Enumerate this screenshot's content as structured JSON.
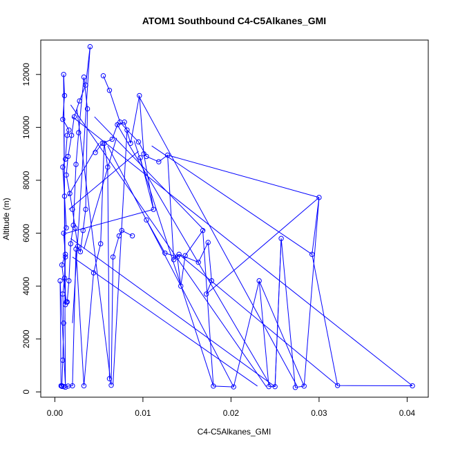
{
  "chart_data": {
    "type": "scatter",
    "title": "ATOM1 Southbound C4-C5Alkanes_GMI",
    "xlabel": "C4-C5Alkanes_GMI",
    "ylabel": "Altitude (m)",
    "xlim": [
      -0.0016,
      0.0424
    ],
    "ylim": [
      -200,
      13300
    ],
    "x_ticks": [
      0.0,
      0.01,
      0.02,
      0.03,
      0.04
    ],
    "x_tick_labels": [
      "0.00",
      "0.01",
      "0.02",
      "0.03",
      "0.04"
    ],
    "y_ticks": [
      0,
      2000,
      4000,
      6000,
      8000,
      10000,
      12000
    ],
    "y_tick_labels": [
      "0",
      "2000",
      "4000",
      "6000",
      "8000",
      "10000",
      "12000"
    ],
    "grid": false,
    "legend": "none",
    "series_color": "#0000ff",
    "series": [
      {
        "x": [
          0.0008,
          0.0009,
          0.001,
          0.0009,
          0.0011,
          0.0012,
          0.001,
          0.0013,
          0.0011,
          0.0009,
          0.0012,
          0.0014,
          0.0016,
          0.0009,
          0.0011,
          0.001,
          0.0012,
          0.0013,
          0.0008,
          0.0012
        ],
        "y": [
          230,
          1200,
          2600,
          3700,
          4300,
          5100,
          6000,
          6200,
          7400,
          8500,
          8800,
          9700,
          9900,
          10300,
          11200,
          12000,
          3300,
          3400,
          4800,
          5200
        ]
      },
      {
        "x": [
          0.004,
          0.0035,
          0.0028,
          0.0022,
          0.0019,
          0.0015,
          0.0013,
          0.0017,
          0.002,
          0.0023,
          0.0026,
          0.0029,
          0.0032,
          0.0035,
          0.0037,
          0.0033,
          0.0027,
          0.0024,
          0.0021,
          0.0018,
          0.0016,
          0.0014
        ],
        "y": [
          13050,
          11600,
          11000,
          10400,
          9700,
          8900,
          8200,
          7500,
          6900,
          6200,
          5500,
          5300,
          6100,
          6900,
          10700,
          11900,
          9800,
          8600,
          6300,
          5600,
          4200,
          3400
        ]
      },
      {
        "x": [
          0.0055,
          0.0062,
          0.0074,
          0.0082,
          0.0095,
          0.0104,
          0.0118,
          0.0128,
          0.0135,
          0.0141,
          0.0163,
          0.0174,
          0.0178,
          0.0172
        ],
        "y": [
          11950,
          11400,
          10200,
          9900,
          9450,
          8900,
          8700,
          8950,
          5000,
          5200,
          4900,
          5650,
          4200,
          3700
        ]
      },
      {
        "x": [
          0.0104,
          0.0125,
          0.0139,
          0.0143,
          0.0148,
          0.0168,
          0.018,
          0.0203,
          0.0232,
          0.0243,
          0.025,
          0.0257,
          0.0273,
          0.0283,
          0.03,
          0.0292,
          0.0321,
          0.0406
        ],
        "y": [
          6500,
          5250,
          5100,
          4000,
          5150,
          6100,
          220,
          190,
          4200,
          200,
          200,
          5800,
          170,
          220,
          7350,
          5200,
          240,
          230
        ]
      },
      {
        "x": [
          0.0088,
          0.0076,
          0.0073,
          0.0066,
          0.0064,
          0.0062,
          0.006,
          0.0056,
          0.0052,
          0.0044,
          0.0033,
          0.0024,
          0.002,
          0.0015,
          0.0012,
          0.001,
          0.0008,
          0.0007,
          0.0006
        ],
        "y": [
          5900,
          6100,
          5900,
          5100,
          250,
          500,
          8500,
          9400,
          5600,
          4500,
          230,
          5400,
          230,
          220,
          180,
          200,
          210,
          230,
          4200
        ]
      },
      {
        "x": [
          0.0046,
          0.0054,
          0.0065,
          0.0071,
          0.0079,
          0.0086,
          0.0096,
          0.0101,
          0.0112,
          0.0097
        ],
        "y": [
          9050,
          9400,
          9550,
          10100,
          10200,
          9400,
          11200,
          9000,
          6900,
          8850
        ]
      }
    ],
    "segments": [
      [
        0.001,
        12000,
        0.0012,
        230
      ],
      [
        0.004,
        13050,
        0.002,
        2600
      ],
      [
        0.0095,
        11200,
        0.0275,
        220
      ],
      [
        0.007,
        10150,
        0.0245,
        230
      ],
      [
        0.0128,
        8950,
        0.03,
        7350
      ],
      [
        0.03,
        7350,
        0.0172,
        3700
      ],
      [
        0.0018,
        10850,
        0.024,
        200
      ],
      [
        0.002,
        10400,
        0.0406,
        230
      ],
      [
        0.0006,
        4200,
        0.0012,
        230
      ],
      [
        0.0025,
        10700,
        0.0063,
        500
      ],
      [
        0.0045,
        10400,
        0.017,
        6100
      ],
      [
        0.006,
        9300,
        0.0203,
        190
      ],
      [
        0.011,
        9300,
        0.0292,
        5200
      ],
      [
        0.009,
        9500,
        0.018,
        220
      ],
      [
        0.0257,
        5800,
        0.025,
        200
      ],
      [
        0.0232,
        4200,
        0.0283,
        220
      ],
      [
        0.0141,
        5200,
        0.0321,
        240
      ],
      [
        0.0013,
        6000,
        0.0112,
        6900
      ],
      [
        0.0018,
        5800,
        0.025,
        200
      ],
      [
        0.002,
        5100,
        0.023,
        220
      ],
      [
        0.0082,
        9900,
        0.0066,
        260
      ],
      [
        0.007,
        9600,
        0.0033,
        5400
      ],
      [
        0.0015,
        7400,
        0.005,
        9400
      ],
      [
        0.0016,
        6900,
        0.0095,
        9100
      ]
    ]
  }
}
